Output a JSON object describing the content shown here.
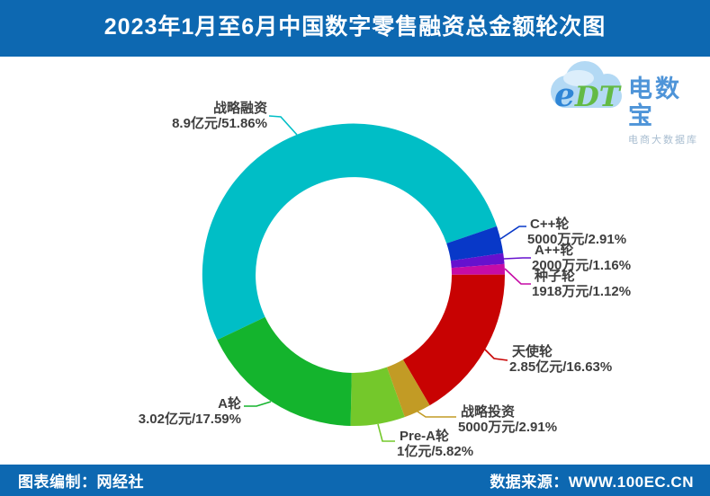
{
  "header": {
    "title": "2023年1月至6月中国数字零售融资总金额轮次图"
  },
  "footer": {
    "left": "图表编制：网经社",
    "right": "数据来源：WWW.100EC.CN"
  },
  "logo": {
    "mark_e": "e",
    "mark_dt": "DT",
    "name": "电数宝",
    "subtitle": "电商大数据库"
  },
  "theme": {
    "bar_blue": "#0D68B1",
    "label_text": "#3F3F3F",
    "background": "#FFFFFF"
  },
  "chart_data": {
    "type": "pie",
    "donut": true,
    "title": "2023年1月至6月中国数字零售融资总金额轮次图",
    "legend": "none",
    "start_angle_clockwise_from_12": 244.5,
    "direction": "clockwise",
    "slices": [
      {
        "name": "战略融资",
        "amount": "8.9亿元",
        "pct": 51.86,
        "value_label": "8.9亿元/51.86%",
        "color": "#00BEC6"
      },
      {
        "name": "C++轮",
        "amount": "5000万元",
        "pct": 2.91,
        "value_label": "5000万元/2.91%",
        "color": "#0838C8"
      },
      {
        "name": "A++轮",
        "amount": "2000万元",
        "pct": 1.16,
        "value_label": "2000万元/1.16%",
        "color": "#6611CE"
      },
      {
        "name": "种子轮",
        "amount": "1918万元",
        "pct": 1.12,
        "value_label": "1918万元/1.12%",
        "color": "#C60CA6"
      },
      {
        "name": "天使轮",
        "amount": "2.85亿元",
        "pct": 16.63,
        "value_label": "2.85亿元/16.63%",
        "color": "#C80202"
      },
      {
        "name": "战略投资",
        "amount": "5000万元",
        "pct": 2.91,
        "value_label": "5000万元/2.91%",
        "color": "#C29B25"
      },
      {
        "name": "Pre-A轮",
        "amount": "1亿元",
        "pct": 5.82,
        "value_label": "1亿元/5.82%",
        "color": "#74C82B"
      },
      {
        "name": "A轮",
        "amount": "3.02亿元",
        "pct": 17.59,
        "value_label": "3.02亿元/17.59%",
        "color": "#14B42D"
      }
    ]
  }
}
